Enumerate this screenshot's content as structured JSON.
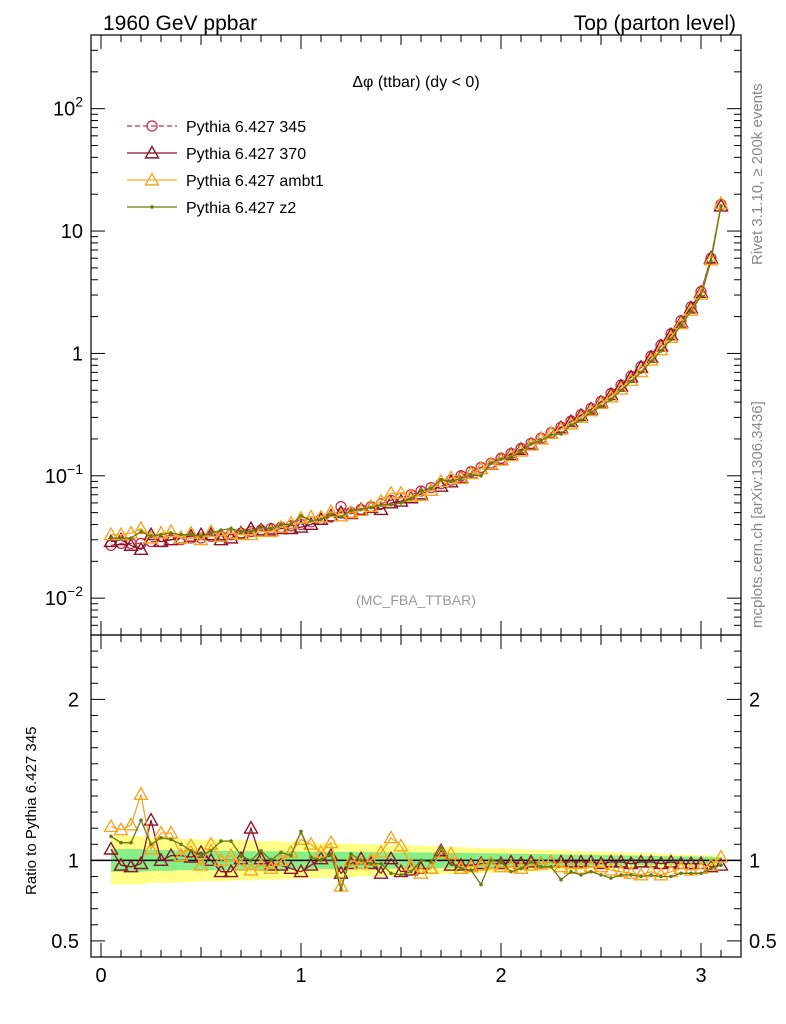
{
  "header": {
    "left": "1960 GeV ppbar",
    "right": "Top (parton level)",
    "title": "Δφ (ttbar) (dy < 0)",
    "watermark": "(MC_FBA_TTBAR)",
    "side_rivet": "Rivet 3.1.10, ≥ 200k events",
    "side_mcplots": "mcplots.cern.ch [arXiv:1306.3436]"
  },
  "ratio_ylabel": "Ratio to Pythia 6.427 345",
  "main_ticks": {
    "y": [
      {
        "v": 0.01,
        "base": "10",
        "exp": "−2"
      },
      {
        "v": 0.1,
        "base": "10",
        "exp": "−1"
      },
      {
        "v": 1,
        "base": "1",
        "exp": ""
      },
      {
        "v": 10,
        "base": "10",
        "exp": ""
      },
      {
        "v": 100,
        "base": "10",
        "exp": "2"
      }
    ]
  },
  "ratio_ticks": {
    "y": [
      {
        "v": 0.5,
        "label": "0.5"
      },
      {
        "v": 1,
        "label": "1"
      },
      {
        "v": 2,
        "label": "2"
      }
    ]
  },
  "x_ticks": [
    {
      "v": 0,
      "label": "0"
    },
    {
      "v": 1,
      "label": "1"
    },
    {
      "v": 2,
      "label": "2"
    },
    {
      "v": 3,
      "label": "3"
    }
  ],
  "chart_data": [
    {
      "type": "line",
      "panel": "main",
      "yscale": "log",
      "xlim": [
        -0.05,
        3.2
      ],
      "ylim": [
        0.005,
        400
      ],
      "legend_position": "top-left",
      "x": [
        0.05,
        0.1,
        0.15,
        0.2,
        0.25,
        0.3,
        0.35,
        0.4,
        0.45,
        0.5,
        0.55,
        0.6,
        0.65,
        0.7,
        0.75,
        0.8,
        0.85,
        0.9,
        0.95,
        1.0,
        1.05,
        1.1,
        1.15,
        1.2,
        1.25,
        1.3,
        1.35,
        1.4,
        1.45,
        1.5,
        1.55,
        1.6,
        1.65,
        1.7,
        1.75,
        1.8,
        1.85,
        1.9,
        1.95,
        2.0,
        2.05,
        2.1,
        2.15,
        2.2,
        2.25,
        2.3,
        2.35,
        2.4,
        2.45,
        2.5,
        2.55,
        2.6,
        2.65,
        2.7,
        2.75,
        2.8,
        2.85,
        2.9,
        2.95,
        3.0,
        3.05,
        3.1
      ],
      "series": [
        {
          "name": "Pythia 6.427 345",
          "color": "#c5304f",
          "marker": "circle-open",
          "line": "dashed",
          "values": [
            0.027,
            0.028,
            0.028,
            0.028,
            0.029,
            0.029,
            0.03,
            0.03,
            0.031,
            0.031,
            0.032,
            0.032,
            0.033,
            0.034,
            0.035,
            0.036,
            0.037,
            0.038,
            0.039,
            0.04,
            0.042,
            0.044,
            0.046,
            0.056,
            0.05,
            0.053,
            0.056,
            0.059,
            0.063,
            0.066,
            0.07,
            0.075,
            0.08,
            0.086,
            0.092,
            0.1,
            0.108,
            0.117,
            0.127,
            0.139,
            0.152,
            0.167,
            0.184,
            0.203,
            0.225,
            0.25,
            0.28,
            0.315,
            0.355,
            0.405,
            0.47,
            0.55,
            0.65,
            0.78,
            0.95,
            1.17,
            1.45,
            1.85,
            2.4,
            3.2,
            6.0,
            16.5
          ]
        },
        {
          "name": "Pythia 6.427 370",
          "color": "#8b1428",
          "marker": "triangle-open",
          "line": "solid",
          "values": [
            0.029,
            0.03,
            0.027,
            0.025,
            0.033,
            0.029,
            0.03,
            0.031,
            0.032,
            0.033,
            0.033,
            0.03,
            0.031,
            0.034,
            0.037,
            0.036,
            0.036,
            0.037,
            0.037,
            0.038,
            0.04,
            0.044,
            0.047,
            0.05,
            0.049,
            0.053,
            0.055,
            0.053,
            0.06,
            0.062,
            0.066,
            0.071,
            0.076,
            0.082,
            0.089,
            0.097,
            0.105,
            0.114,
            0.124,
            0.136,
            0.149,
            0.164,
            0.181,
            0.2,
            0.222,
            0.247,
            0.277,
            0.311,
            0.35,
            0.4,
            0.46,
            0.54,
            0.64,
            0.77,
            0.93,
            1.15,
            1.42,
            1.8,
            2.35,
            3.15,
            6.0,
            16.0
          ]
        },
        {
          "name": "Pythia 6.427 ambt1",
          "color": "#f5a623",
          "marker": "triangle-open",
          "line": "solid",
          "values": [
            0.033,
            0.033,
            0.034,
            0.037,
            0.031,
            0.034,
            0.035,
            0.031,
            0.034,
            0.03,
            0.035,
            0.032,
            0.034,
            0.033,
            0.033,
            0.035,
            0.035,
            0.038,
            0.041,
            0.045,
            0.046,
            0.046,
            0.051,
            0.047,
            0.05,
            0.052,
            0.056,
            0.062,
            0.072,
            0.072,
            0.068,
            0.069,
            0.076,
            0.09,
            0.096,
            0.095,
            0.104,
            0.114,
            0.125,
            0.134,
            0.146,
            0.159,
            0.178,
            0.199,
            0.222,
            0.24,
            0.265,
            0.3,
            0.34,
            0.39,
            0.44,
            0.51,
            0.6,
            0.71,
            0.88,
            1.07,
            1.35,
            1.75,
            2.25,
            3.05,
            5.8,
            16.8
          ]
        },
        {
          "name": "Pythia 6.427 z2",
          "color": "#6b7a0e",
          "marker": "dot",
          "line": "solid",
          "values": [
            0.031,
            0.031,
            0.031,
            0.035,
            0.032,
            0.033,
            0.034,
            0.033,
            0.033,
            0.032,
            0.034,
            0.036,
            0.037,
            0.035,
            0.035,
            0.038,
            0.037,
            0.04,
            0.04,
            0.047,
            0.043,
            0.044,
            0.048,
            0.046,
            0.052,
            0.053,
            0.055,
            0.058,
            0.058,
            0.06,
            0.065,
            0.075,
            0.079,
            0.093,
            0.09,
            0.095,
            0.102,
            0.1,
            0.127,
            0.137,
            0.142,
            0.158,
            0.182,
            0.194,
            0.216,
            0.22,
            0.26,
            0.285,
            0.33,
            0.37,
            0.42,
            0.5,
            0.59,
            0.7,
            0.86,
            1.05,
            1.3,
            1.7,
            2.2,
            2.95,
            5.7,
            16.0
          ]
        }
      ]
    },
    {
      "type": "line",
      "panel": "ratio",
      "ylabel": "Ratio to Pythia 6.427 345",
      "ylim": [
        0.4,
        2.4
      ],
      "reference": 1,
      "x": [
        0.05,
        0.1,
        0.15,
        0.2,
        0.25,
        0.3,
        0.35,
        0.4,
        0.45,
        0.5,
        0.55,
        0.6,
        0.65,
        0.7,
        0.75,
        0.8,
        0.85,
        0.9,
        0.95,
        1.0,
        1.05,
        1.1,
        1.15,
        1.2,
        1.25,
        1.3,
        1.35,
        1.4,
        1.45,
        1.5,
        1.55,
        1.6,
        1.65,
        1.7,
        1.75,
        1.8,
        1.85,
        1.9,
        1.95,
        2.0,
        2.05,
        2.1,
        2.15,
        2.2,
        2.25,
        2.3,
        2.35,
        2.4,
        2.45,
        2.5,
        2.55,
        2.6,
        2.65,
        2.7,
        2.75,
        2.8,
        2.85,
        2.9,
        2.95,
        3.0,
        3.05,
        3.1
      ],
      "bands": {
        "inner_color": "#88ee88",
        "outer_color": "#ffff88",
        "inner_half_width": [
          0.07,
          0.07,
          0.07,
          0.07,
          0.065,
          0.065,
          0.065,
          0.06,
          0.06,
          0.06,
          0.06,
          0.06,
          0.06,
          0.058,
          0.058,
          0.057,
          0.057,
          0.056,
          0.056,
          0.055,
          0.055,
          0.054,
          0.054,
          0.053,
          0.053,
          0.052,
          0.052,
          0.051,
          0.051,
          0.05,
          0.05,
          0.049,
          0.049,
          0.048,
          0.048,
          0.047,
          0.046,
          0.045,
          0.044,
          0.043,
          0.042,
          0.041,
          0.04,
          0.039,
          0.038,
          0.037,
          0.036,
          0.035,
          0.034,
          0.033,
          0.032,
          0.031,
          0.03,
          0.029,
          0.028,
          0.027,
          0.026,
          0.025,
          0.024,
          0.023,
          0.022,
          0.02
        ],
        "outer_half_width": [
          0.15,
          0.15,
          0.15,
          0.15,
          0.14,
          0.14,
          0.14,
          0.135,
          0.135,
          0.13,
          0.13,
          0.13,
          0.125,
          0.125,
          0.125,
          0.12,
          0.12,
          0.12,
          0.115,
          0.115,
          0.11,
          0.11,
          0.11,
          0.105,
          0.105,
          0.1,
          0.1,
          0.1,
          0.095,
          0.095,
          0.095,
          0.09,
          0.09,
          0.085,
          0.085,
          0.082,
          0.08,
          0.078,
          0.076,
          0.074,
          0.072,
          0.07,
          0.068,
          0.066,
          0.064,
          0.062,
          0.06,
          0.058,
          0.056,
          0.054,
          0.052,
          0.05,
          0.048,
          0.046,
          0.044,
          0.042,
          0.04,
          0.038,
          0.036,
          0.034,
          0.032,
          0.03
        ]
      },
      "series": [
        {
          "name": "Pythia 6.427 370",
          "color": "#8b1428",
          "marker": "triangle-open",
          "values": [
            1.07,
            0.97,
            0.96,
            0.98,
            1.25,
            1.0,
            1.03,
            1.03,
            1.02,
            1.05,
            1.0,
            0.93,
            0.93,
            1.01,
            1.2,
            1.01,
            0.97,
            0.97,
            0.95,
            0.93,
            0.97,
            1.01,
            1.03,
            0.92,
            0.98,
            1.01,
            0.98,
            0.92,
            1.01,
            0.93,
            0.94,
            0.95,
            0.95,
            1.06,
            0.97,
            0.97,
            0.97,
            0.98,
            0.98,
            0.98,
            0.99,
            0.98,
            0.99,
            0.98,
            0.99,
            0.99,
            0.99,
            0.99,
            0.99,
            0.98,
            0.99,
            0.99,
            0.98,
            0.99,
            0.99,
            0.98,
            0.99,
            0.98,
            0.98,
            0.98,
            0.96,
            0.97
          ]
        },
        {
          "name": "Pythia 6.427 ambt1",
          "color": "#f5a623",
          "marker": "triangle-open",
          "values": [
            1.21,
            1.19,
            1.22,
            1.41,
            1.07,
            1.17,
            1.17,
            1.03,
            1.09,
            0.97,
            1.1,
            1.0,
            1.03,
            0.97,
            0.94,
            0.97,
            0.95,
            1.0,
            1.05,
            1.13,
            1.1,
            1.05,
            1.11,
            0.84,
            1.0,
            0.98,
            1.0,
            1.05,
            1.14,
            1.09,
            0.97,
            0.92,
            0.95,
            1.05,
            1.04,
            0.95,
            0.96,
            0.97,
            0.98,
            0.96,
            0.96,
            0.95,
            0.97,
            0.98,
            0.99,
            0.96,
            0.95,
            0.95,
            0.96,
            0.96,
            0.94,
            0.93,
            0.92,
            0.91,
            0.93,
            0.91,
            0.93,
            0.95,
            0.94,
            0.95,
            0.97,
            1.02
          ]
        },
        {
          "name": "Pythia 6.427 z2",
          "color": "#6b7a0e",
          "marker": "dot",
          "values": [
            1.15,
            1.11,
            1.11,
            1.25,
            1.1,
            1.14,
            1.13,
            1.1,
            1.06,
            1.03,
            1.06,
            1.12,
            1.12,
            1.03,
            1.0,
            1.06,
            1.0,
            1.05,
            1.03,
            1.18,
            1.02,
            1.0,
            1.04,
            0.82,
            1.04,
            1.0,
            0.98,
            0.98,
            0.92,
            0.91,
            0.93,
            1.0,
            0.99,
            1.08,
            0.98,
            0.95,
            0.94,
            0.85,
            1.0,
            0.99,
            0.93,
            0.95,
            0.99,
            0.96,
            0.96,
            0.88,
            0.93,
            0.91,
            0.93,
            0.91,
            0.89,
            0.91,
            0.91,
            0.9,
            0.91,
            0.9,
            0.9,
            0.92,
            0.92,
            0.92,
            0.95,
            0.97
          ]
        }
      ]
    }
  ]
}
